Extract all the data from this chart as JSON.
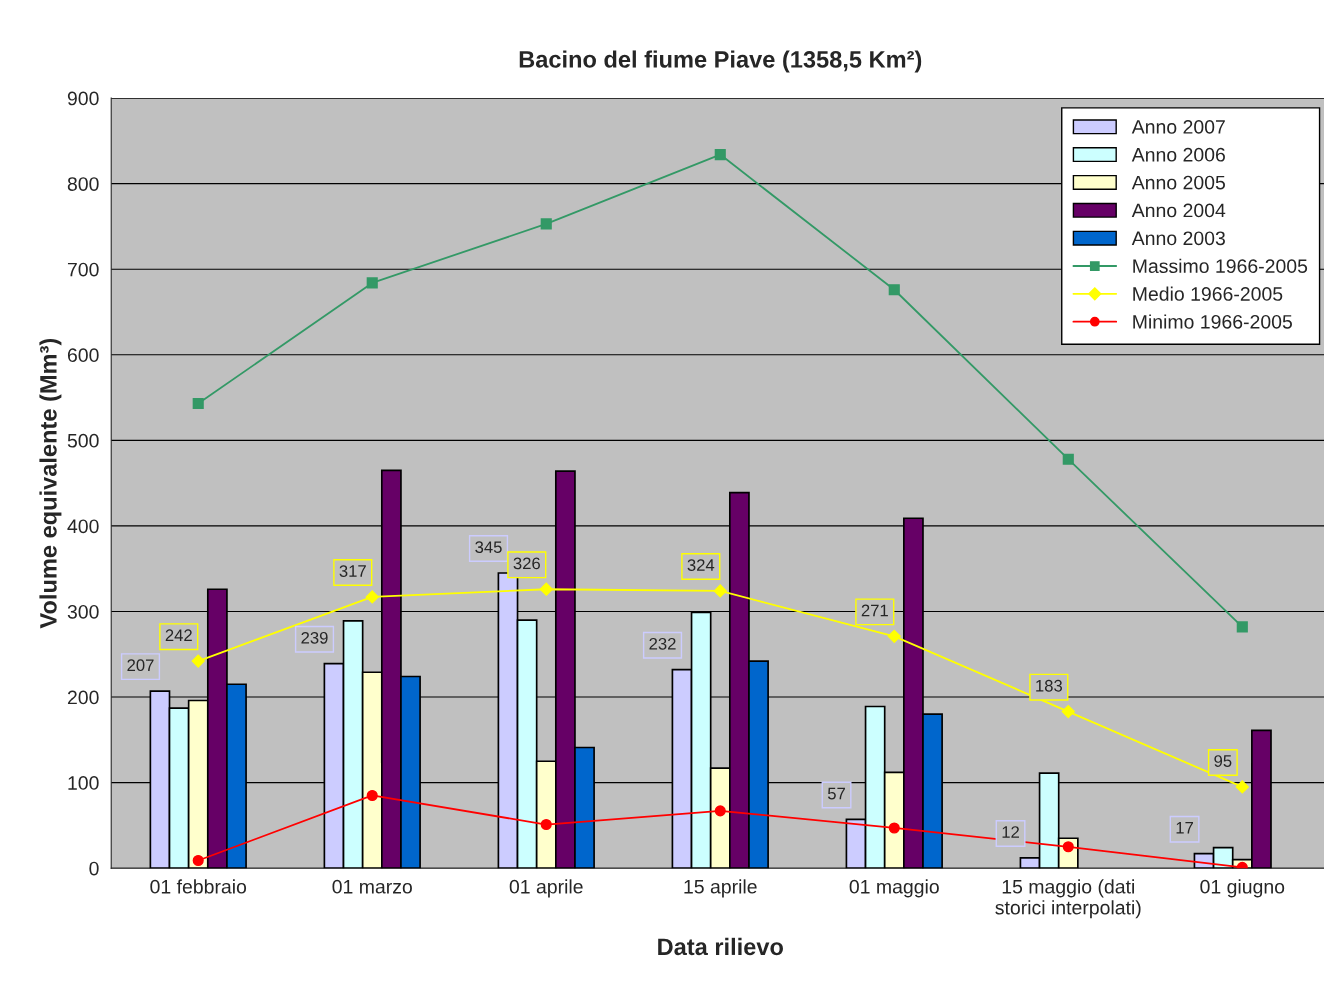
{
  "chart_data": {
    "type": "bar",
    "title": "Bacino del fiume Piave (1358,5 Km²)",
    "xlabel": "Data rilievo",
    "ylabel": "Volume equivalente (Mm³)",
    "categories": [
      "01 febbraio",
      "01 marzo",
      "01 aprile",
      "15 aprile",
      "01 maggio",
      "15 maggio (dati\nstorici interpolati)",
      "01 giugno"
    ],
    "series": [
      {
        "name": "Anno 2007",
        "color": "#ccccff",
        "values": [
          207,
          239,
          345,
          232,
          57,
          12,
          17
        ],
        "value_labels": [
          "207",
          "239",
          "345",
          "232",
          "57",
          "12",
          "17"
        ]
      },
      {
        "name": "Anno 2006",
        "color": "#ccffff",
        "values": [
          187,
          289,
          290,
          299,
          189,
          111,
          24
        ]
      },
      {
        "name": "Anno 2005",
        "color": "#ffffcc",
        "values": [
          196,
          229,
          125,
          117,
          112,
          35,
          10
        ]
      },
      {
        "name": "Anno 2004",
        "color": "#660066",
        "values": [
          326,
          465,
          464,
          439,
          409,
          null,
          161
        ]
      },
      {
        "name": "Anno 2003",
        "color": "#0066cc",
        "values": [
          215,
          224,
          141,
          242,
          180,
          null,
          null
        ]
      },
      {
        "name": "Massimo 1966-2005",
        "type": "line",
        "marker": "square",
        "color": "#339966",
        "values": [
          543,
          684,
          753,
          834,
          676,
          478,
          282
        ]
      },
      {
        "name": "Medio 1966-2005",
        "type": "line",
        "marker": "diamond",
        "color": "#ffff00",
        "values": [
          242,
          317,
          326,
          324,
          271,
          183,
          95
        ],
        "value_labels": [
          "242",
          "317",
          "326",
          "324",
          "271",
          "183",
          "95"
        ]
      },
      {
        "name": "Minimo 1966-2005",
        "type": "line",
        "marker": "circle",
        "color": "#ff0000",
        "values": [
          9,
          85,
          51,
          67,
          47,
          25,
          1
        ]
      }
    ],
    "ylim": [
      0,
      900
    ],
    "yticks": [
      0,
      100,
      200,
      300,
      400,
      500,
      600,
      700,
      800,
      900
    ],
    "grid": "y",
    "legend": "top right"
  }
}
